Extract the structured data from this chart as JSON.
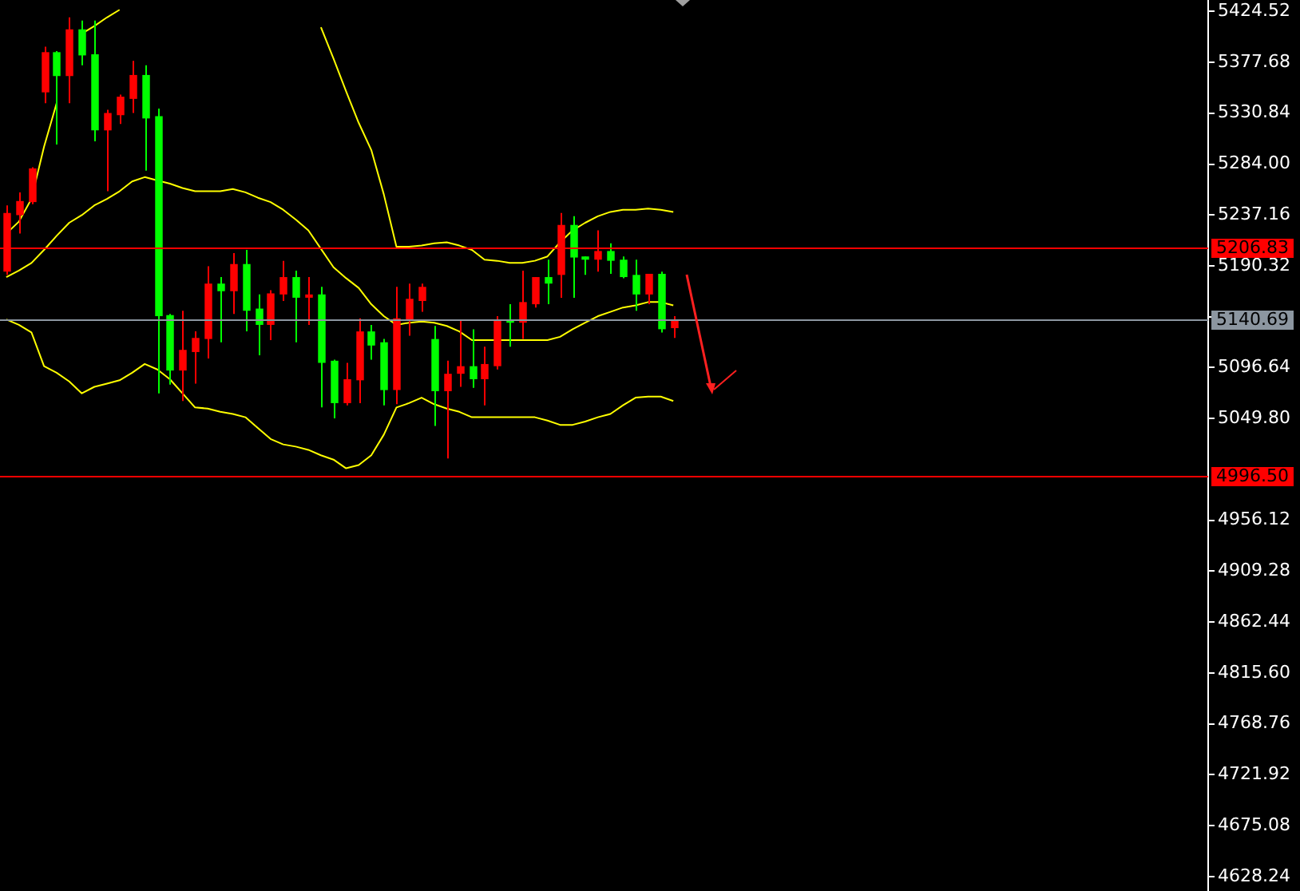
{
  "chart_data": {
    "type": "candlestick",
    "tick_labels": "y",
    "grid": false,
    "legend": false,
    "categories": [
      null,
      null,
      null,
      null,
      null,
      null,
      null,
      null,
      null,
      null,
      null,
      null,
      null,
      null,
      null,
      null,
      null,
      null,
      null,
      null,
      null,
      null,
      null,
      null,
      null,
      null,
      null,
      null,
      null,
      null,
      null,
      null,
      null,
      null,
      null,
      null,
      null,
      null,
      null,
      null,
      null,
      null,
      null,
      null,
      null,
      null,
      null,
      null,
      null,
      null,
      null,
      null,
      null,
      null
    ],
    "ohlc": [
      [
        5185,
        5246,
        5182,
        5239
      ],
      [
        5237,
        5258,
        5220,
        5250
      ],
      [
        5249,
        5281,
        5247,
        5280
      ],
      [
        5350,
        5392,
        5340,
        5387
      ],
      [
        5387,
        5388,
        5302,
        5365
      ],
      [
        5365,
        5419,
        5340,
        5408
      ],
      [
        5408,
        5416,
        5375,
        5384
      ],
      [
        5385,
        5416,
        5305,
        5315
      ],
      [
        5315,
        5334,
        5259,
        5331
      ],
      [
        5329,
        5348,
        5321,
        5346
      ],
      [
        5344,
        5379,
        5331,
        5366
      ],
      [
        5366,
        5375,
        5278,
        5326
      ],
      [
        5328,
        5335,
        5073,
        5144
      ],
      [
        5145,
        5146,
        5081,
        5094
      ],
      [
        5094,
        5149,
        5066,
        5113
      ],
      [
        5111,
        5130,
        5082,
        5124
      ],
      [
        5123,
        5190,
        5105,
        5174
      ],
      [
        5174,
        5180,
        5120,
        5167
      ],
      [
        5167,
        5202,
        5146,
        5192
      ],
      [
        5192,
        5205,
        5130,
        5149
      ],
      [
        5151,
        5164,
        5108,
        5136
      ],
      [
        5136,
        5168,
        5122,
        5165
      ],
      [
        5164,
        5195,
        5158,
        5180
      ],
      [
        5180,
        5186,
        5120,
        5161
      ],
      [
        5161,
        5180,
        5136,
        5164
      ],
      [
        5164,
        5171,
        5060,
        5101
      ],
      [
        5103,
        5104,
        5050,
        5064
      ],
      [
        5064,
        5101,
        5062,
        5086
      ],
      [
        5085,
        5142,
        5064,
        5130
      ],
      [
        5130,
        5136,
        5104,
        5117
      ],
      [
        5120,
        5123,
        5062,
        5076
      ],
      [
        5076,
        5171,
        5063,
        5142
      ],
      [
        5141,
        5174,
        5126,
        5160
      ],
      [
        5158,
        5174,
        5148,
        5171
      ],
      [
        5123,
        5135,
        5043,
        5075
      ],
      [
        5075,
        5103,
        5013,
        5091
      ],
      [
        5091,
        5141,
        5079,
        5098
      ],
      [
        5098,
        5132,
        5078,
        5086
      ],
      [
        5086,
        5116,
        5062,
        5100
      ],
      [
        5098,
        5144,
        5095,
        5141
      ],
      [
        5141,
        5155,
        5116,
        5138
      ],
      [
        5138,
        5186,
        5123,
        5157
      ],
      [
        5155,
        5180,
        5152,
        5180
      ],
      [
        5180,
        5196,
        5155,
        5174
      ],
      [
        5182,
        5239,
        5161,
        5228
      ],
      [
        5228,
        5236,
        5161,
        5198
      ],
      [
        5199,
        5199,
        5182,
        5196
      ],
      [
        5196,
        5223,
        5185,
        5204
      ],
      [
        5204,
        5211,
        5183,
        5195
      ],
      [
        5196,
        5199,
        5179,
        5180
      ],
      [
        5182,
        5196,
        5149,
        5164
      ],
      [
        5164,
        5183,
        5155,
        5183
      ],
      [
        5183,
        5185,
        5129,
        5132
      ],
      [
        5133,
        5144,
        5124,
        5141
      ]
    ],
    "colors": [
      "#ff0000",
      "#ff0000",
      "#ff0000",
      "#ff0000",
      "#00ff00",
      "#ff0000",
      "#00ff00",
      "#00ff00",
      "#ff0000",
      "#ff0000",
      "#ff0000",
      "#00ff00",
      "#00ff00",
      "#00ff00",
      "#ff0000",
      "#ff0000",
      "#ff0000",
      "#00ff00",
      "#ff0000",
      "#00ff00",
      "#00ff00",
      "#ff0000",
      "#ff0000",
      "#00ff00",
      "#ff0000",
      "#00ff00",
      "#00ff00",
      "#ff0000",
      "#ff0000",
      "#00ff00",
      "#00ff00",
      "#ff0000",
      "#ff0000",
      "#ff0000",
      "#00ff00",
      "#ff0000",
      "#ff0000",
      "#00ff00",
      "#ff0000",
      "#ff0000",
      "#00ff00",
      "#ff0000",
      "#ff0000",
      "#00ff00",
      "#ff0000",
      "#00ff00",
      "#00ff00",
      "#ff0000",
      "#00ff00",
      "#00ff00",
      "#00ff00",
      "#ff0000",
      "#00ff00",
      "#ff0000"
    ],
    "series": [
      {
        "type": "line",
        "color": "#ffff00",
        "values": [
          5220,
          5231,
          5252,
          5300,
          5340,
          null,
          5404,
          5411,
          5419,
          5426,
          null,
          null,
          null,
          null,
          null,
          null,
          null,
          null,
          null,
          null,
          null,
          null,
          null,
          null,
          null,
          5410,
          5381,
          5351,
          5322,
          5297,
          5256,
          5208,
          5208,
          5209,
          5211,
          5212,
          5209,
          5205,
          5196,
          5195,
          5193,
          5193,
          5195,
          5199,
          5212,
          5223,
          5230,
          5236,
          5240,
          5242,
          5242,
          5243,
          5242,
          5240
        ]
      },
      {
        "type": "line",
        "color": "#ffff00",
        "values": [
          5180,
          5186,
          5193,
          5205,
          5218,
          5230,
          5237,
          5246,
          5252,
          5259,
          5268,
          5272,
          5269,
          5266,
          5262,
          5259,
          5259,
          5259,
          5261,
          5258,
          5253,
          5249,
          5242,
          5233,
          5223,
          5206,
          5189,
          5179,
          5170,
          5155,
          5144,
          5136,
          5138,
          5139,
          5138,
          5135,
          5130,
          5122,
          5122,
          5122,
          5122,
          5122,
          5122,
          5122,
          5125,
          5132,
          5138,
          5144,
          5148,
          5152,
          5154,
          5157,
          5157,
          5154
        ]
      },
      {
        "type": "line",
        "color": "#ffff00",
        "values": [
          5141,
          5136,
          5129,
          5098,
          5092,
          5084,
          5073,
          5079,
          5082,
          5085,
          5092,
          5100,
          5095,
          5086,
          5073,
          5060,
          5059,
          5056,
          5054,
          5051,
          5041,
          5031,
          5026,
          5024,
          5021,
          5016,
          5012,
          5004,
          5007,
          5016,
          5035,
          5060,
          5064,
          5069,
          5063,
          5059,
          5056,
          5051,
          5051,
          5051,
          5051,
          5051,
          5051,
          5048,
          5044,
          5044,
          5047,
          5051,
          5054,
          5062,
          5069,
          5070,
          5070,
          5066
        ]
      }
    ],
    "ylim": [
      4615,
      5435
    ],
    "yticks": [
      5424.52,
      5377.68,
      5330.84,
      {
        "value": 5284,
        "label": "5284.00"
      },
      5237.16,
      5190.32,
      {
        "value": 5143.48,
        "label": null
      },
      5096.64,
      {
        "value": 5049.8,
        "label": "5049.80"
      },
      4956.12,
      4909.28,
      4862.44,
      {
        "value": 4815.6,
        "label": "4815.60"
      },
      4768.76,
      4721.92,
      4675.08,
      4628.24
    ],
    "ref_lines": [
      {
        "axis": "y",
        "value": 5206.83,
        "label": "5206.83",
        "color": "#ff0000"
      },
      {
        "axis": "y",
        "value": 5140.69,
        "label": "5140.69",
        "color": "#8c96a0"
      },
      {
        "axis": "y",
        "value": 4996.5,
        "label": "4996.50",
        "color": "#ff0000"
      }
    ]
  }
}
